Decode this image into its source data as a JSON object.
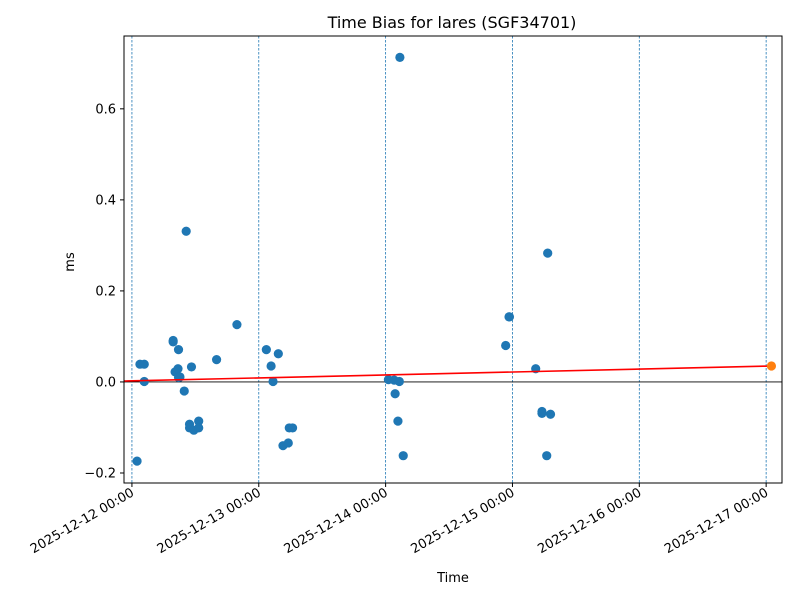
{
  "chart_data": {
    "type": "scatter",
    "title": "Time Bias for lares (SGF34701)",
    "xlabel": "Time",
    "ylabel": "ms",
    "x_ticks": [
      "2025-12-12 00:00",
      "2025-12-13 00:00",
      "2025-12-14 00:00",
      "2025-12-15 00:00",
      "2025-12-16 00:00",
      "2025-12-17 00:00"
    ],
    "y_ticks": [
      "−0.2",
      "0.0",
      "0.2",
      "0.4",
      "0.6"
    ],
    "xlim": [
      "2025-12-11T22:30",
      "2025-12-17T03:00"
    ],
    "ylim": [
      -0.222,
      0.76
    ],
    "grid": "vertical dashed lines at day ticks",
    "zero_line": true,
    "colors": {
      "points": "#1f77b4",
      "fit": "#ff0000",
      "prediction": "#ff7f0e",
      "grid": "#1f77b4",
      "zero": "#000000"
    },
    "series": [
      {
        "points": [
          {
            "x": "2025-12-12T00:58",
            "y": -0.174
          },
          {
            "x": "2025-12-12T01:31",
            "y": 0.039
          },
          {
            "x": "2025-12-12T02:20",
            "y": 0.039
          },
          {
            "x": "2025-12-12T02:20",
            "y": 0.001
          },
          {
            "x": "2025-12-12T07:48",
            "y": 0.088
          },
          {
            "x": "2025-12-12T07:48",
            "y": 0.091
          },
          {
            "x": "2025-12-12T08:10",
            "y": 0.022
          },
          {
            "x": "2025-12-12T08:43",
            "y": 0.029
          },
          {
            "x": "2025-12-12T08:49",
            "y": 0.071
          },
          {
            "x": "2025-12-12T08:49",
            "y": 0.01
          },
          {
            "x": "2025-12-12T09:05",
            "y": 0.011
          },
          {
            "x": "2025-12-12T09:54",
            "y": -0.02
          },
          {
            "x": "2025-12-12T10:16",
            "y": 0.331
          },
          {
            "x": "2025-12-12T10:54",
            "y": -0.093
          },
          {
            "x": "2025-12-12T10:54",
            "y": -0.101
          },
          {
            "x": "2025-12-12T11:16",
            "y": 0.033
          },
          {
            "x": "2025-12-12T11:43",
            "y": -0.106
          },
          {
            "x": "2025-12-12T12:38",
            "y": -0.086
          },
          {
            "x": "2025-12-12T12:38",
            "y": -0.101
          },
          {
            "x": "2025-12-12T16:01",
            "y": 0.049
          },
          {
            "x": "2025-12-12T19:52",
            "y": 0.126
          },
          {
            "x": "2025-12-13T01:26",
            "y": 0.071
          },
          {
            "x": "2025-12-13T02:20",
            "y": 0.035
          },
          {
            "x": "2025-12-13T02:42",
            "y": 0.001
          },
          {
            "x": "2025-12-13T03:42",
            "y": 0.062
          },
          {
            "x": "2025-12-13T04:35",
            "y": -0.14
          },
          {
            "x": "2025-12-13T05:35",
            "y": -0.134
          },
          {
            "x": "2025-12-13T05:46",
            "y": -0.101
          },
          {
            "x": "2025-12-13T06:24",
            "y": -0.101
          },
          {
            "x": "2025-12-14T00:32",
            "y": 0.005
          },
          {
            "x": "2025-12-14T01:37",
            "y": 0.004
          },
          {
            "x": "2025-12-14T01:48",
            "y": -0.026
          },
          {
            "x": "2025-12-14T02:20",
            "y": -0.086
          },
          {
            "x": "2025-12-14T02:36",
            "y": 0.001
          },
          {
            "x": "2025-12-14T02:42",
            "y": 0.713
          },
          {
            "x": "2025-12-14T03:20",
            "y": -0.162
          },
          {
            "x": "2025-12-14T22:43",
            "y": 0.08
          },
          {
            "x": "2025-12-14T23:21",
            "y": 0.143
          },
          {
            "x": "2025-12-14T23:26",
            "y": 0.143
          },
          {
            "x": "2025-12-15T04:24",
            "y": 0.029
          },
          {
            "x": "2025-12-15T05:35",
            "y": -0.065
          },
          {
            "x": "2025-12-15T05:35",
            "y": -0.069
          },
          {
            "x": "2025-12-15T06:29",
            "y": -0.162
          },
          {
            "x": "2025-12-15T06:40",
            "y": 0.283
          },
          {
            "x": "2025-12-15T07:12",
            "y": -0.071
          }
        ]
      }
    ],
    "fit_line": {
      "start": {
        "x": "2025-12-11T22:30",
        "y": 0.002
      },
      "end": {
        "x": "2025-12-17T01:00",
        "y": 0.035
      }
    },
    "prediction_point": {
      "x": "2025-12-17T01:00",
      "y": 0.035
    }
  }
}
